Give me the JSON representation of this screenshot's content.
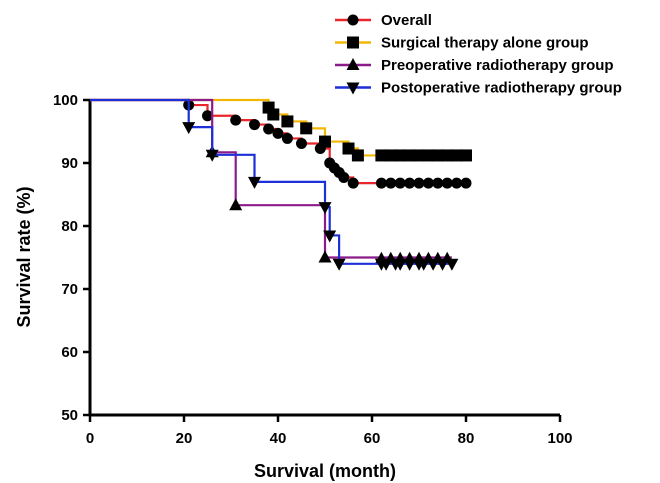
{
  "chart_data": {
    "type": "line",
    "subtype": "kaplan-meier",
    "xlabel": "Survival (month)",
    "ylabel": "Survival rate (%)",
    "xlim": [
      0,
      100
    ],
    "ylim": [
      50,
      100
    ],
    "xticks": [
      0,
      20,
      40,
      60,
      80,
      100
    ],
    "yticks": [
      50,
      60,
      70,
      80,
      90,
      100
    ],
    "legend_position": "top-right",
    "grid": false,
    "series": [
      {
        "name": "Overall",
        "color": "#e8262b",
        "marker": "circle",
        "steps": [
          [
            0,
            100
          ],
          [
            21,
            99.2
          ],
          [
            25,
            97.5
          ],
          [
            31,
            96.8
          ],
          [
            35,
            96.1
          ],
          [
            38,
            95.4
          ],
          [
            40,
            94.7
          ],
          [
            42,
            93.9
          ],
          [
            45,
            93.1
          ],
          [
            49,
            92.3
          ],
          [
            51,
            91.5
          ],
          [
            51,
            90.0
          ],
          [
            52,
            89.2
          ],
          [
            53,
            88.5
          ],
          [
            54,
            87.7
          ],
          [
            56,
            86.8
          ],
          [
            80,
            86.8
          ]
        ],
        "markers": [
          [
            21,
            99.2
          ],
          [
            25,
            97.5
          ],
          [
            31,
            96.8
          ],
          [
            35,
            96.1
          ],
          [
            38,
            95.4
          ],
          [
            40,
            94.7
          ],
          [
            42,
            93.9
          ],
          [
            45,
            93.1
          ],
          [
            49,
            92.3
          ],
          [
            51,
            90.0
          ],
          [
            52,
            89.2
          ],
          [
            53,
            88.5
          ],
          [
            54,
            87.7
          ],
          [
            56,
            86.8
          ],
          [
            62,
            86.8
          ],
          [
            64,
            86.8
          ],
          [
            66,
            86.8
          ],
          [
            68,
            86.8
          ],
          [
            70,
            86.8
          ],
          [
            72,
            86.8
          ],
          [
            74,
            86.8
          ],
          [
            76,
            86.8
          ],
          [
            78,
            86.8
          ],
          [
            80,
            86.8
          ]
        ]
      },
      {
        "name": "Surgical therapy alone group",
        "color": "#f2b705",
        "marker": "square",
        "steps": [
          [
            0,
            100
          ],
          [
            38,
            98.8
          ],
          [
            39,
            97.7
          ],
          [
            42,
            96.6
          ],
          [
            46,
            95.5
          ],
          [
            50,
            93.4
          ],
          [
            55,
            92.3
          ],
          [
            57,
            91.2
          ],
          [
            80,
            91.2
          ]
        ],
        "markers": [
          [
            38,
            98.8
          ],
          [
            39,
            97.7
          ],
          [
            42,
            96.6
          ],
          [
            46,
            95.5
          ],
          [
            50,
            93.4
          ],
          [
            55,
            92.3
          ],
          [
            57,
            91.2
          ],
          [
            62,
            91.2
          ],
          [
            64,
            91.2
          ],
          [
            66,
            91.2
          ],
          [
            68,
            91.2
          ],
          [
            70,
            91.2
          ],
          [
            72,
            91.2
          ],
          [
            74,
            91.2
          ],
          [
            76,
            91.2
          ],
          [
            78,
            91.2
          ],
          [
            80,
            91.2
          ]
        ]
      },
      {
        "name": "Preoperative radiotherapy group",
        "color": "#8b1a8b",
        "marker": "triangle-up",
        "steps": [
          [
            0,
            100
          ],
          [
            26,
            91.7
          ],
          [
            31,
            83.3
          ],
          [
            50,
            75.0
          ],
          [
            77,
            75.0
          ]
        ],
        "markers": [
          [
            26,
            91.7
          ],
          [
            31,
            83.3
          ],
          [
            50,
            75.0
          ],
          [
            62,
            74.8
          ],
          [
            64,
            74.8
          ],
          [
            66,
            74.8
          ],
          [
            68,
            74.8
          ],
          [
            70,
            74.8
          ],
          [
            72,
            74.8
          ],
          [
            74,
            74.8
          ],
          [
            76,
            74.8
          ]
        ]
      },
      {
        "name": "Postoperative radiotherapy group",
        "color": "#1d2fd6",
        "marker": "triangle-down",
        "steps": [
          [
            0,
            100
          ],
          [
            21,
            95.7
          ],
          [
            26,
            91.3
          ],
          [
            35,
            87.0
          ],
          [
            50,
            83.0
          ],
          [
            51,
            78.5
          ],
          [
            53,
            74.0
          ],
          [
            77,
            74.0
          ]
        ],
        "markers": [
          [
            21,
            95.7
          ],
          [
            26,
            91.3
          ],
          [
            35,
            87.0
          ],
          [
            50,
            83.0
          ],
          [
            51,
            78.5
          ],
          [
            53,
            74.0
          ],
          [
            62,
            74.0
          ],
          [
            63,
            74.0
          ],
          [
            65,
            74.0
          ],
          [
            66,
            74.0
          ],
          [
            68,
            74.0
          ],
          [
            70,
            74.0
          ],
          [
            71,
            74.0
          ],
          [
            73,
            74.0
          ],
          [
            75,
            74.0
          ],
          [
            77,
            74.0
          ]
        ]
      }
    ]
  }
}
